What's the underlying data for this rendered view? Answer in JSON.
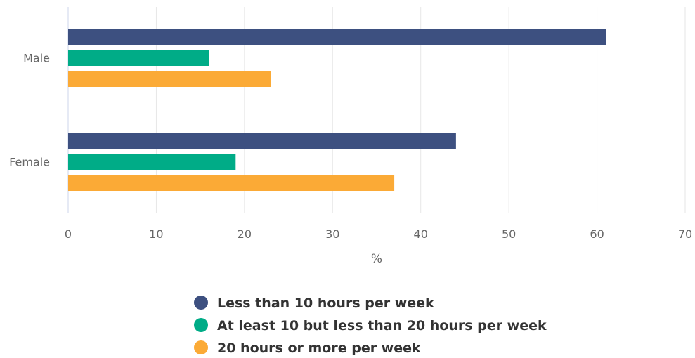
{
  "chart_data": {
    "type": "bar",
    "orientation": "horizontal",
    "categories": [
      "Male",
      "Female"
    ],
    "series": [
      {
        "name": "Less than 10 hours per week",
        "values": [
          61,
          44
        ],
        "color": "#3d5080"
      },
      {
        "name": "At least 10 but less than 20 hours per week",
        "values": [
          16,
          19
        ],
        "color": "#00ac87"
      },
      {
        "name": "20 hours or more per week",
        "values": [
          23,
          37
        ],
        "color": "#fbaa36"
      }
    ],
    "xlabel": "%",
    "xlim": [
      0,
      70
    ],
    "xticks": [
      "0",
      "10",
      "20",
      "30",
      "40",
      "50",
      "60",
      "70"
    ],
    "grid": true,
    "legend_position": "bottom"
  }
}
